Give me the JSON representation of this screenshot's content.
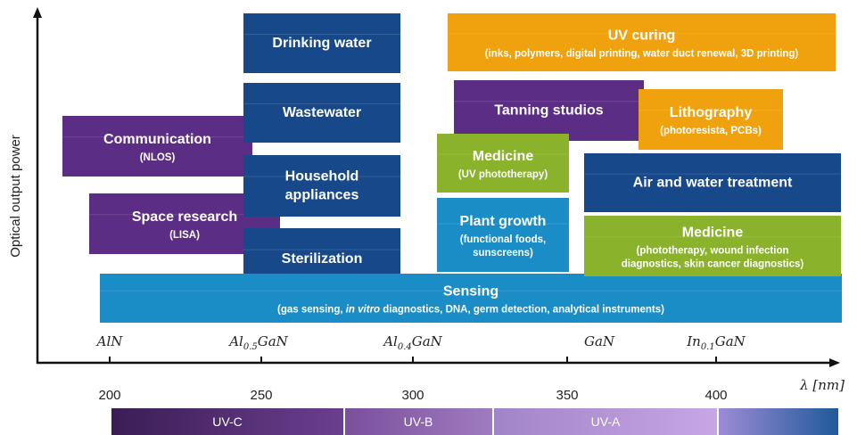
{
  "y_axis_label": "Optical output power",
  "x_axis_label": "λ [nm]",
  "x_ticks": [
    "200",
    "250",
    "300",
    "350",
    "400"
  ],
  "materials": [
    [
      "AlN"
    ],
    [
      "Al",
      "0.5",
      "GaN"
    ],
    [
      "Al",
      "0.4",
      "GaN"
    ],
    [
      "GaN"
    ],
    [
      "In",
      "0.1",
      "GaN"
    ]
  ],
  "bands": [
    "UV-C",
    "UV-B",
    "UV-A"
  ],
  "boxes": [
    {
      "title": [
        "Communication"
      ],
      "subtitle": [
        "(NLOS)"
      ]
    },
    {
      "title": [
        "Space research"
      ],
      "subtitle": [
        "(LISA)"
      ]
    },
    {
      "title": [
        "Drinking water"
      ],
      "subtitle": []
    },
    {
      "title": [
        "Wastewater"
      ],
      "subtitle": []
    },
    {
      "title": [
        "Household",
        "appliances"
      ],
      "subtitle": []
    },
    {
      "title": [
        "Sterilization"
      ],
      "subtitle": []
    },
    {
      "title": [
        "Sensing"
      ],
      "subtitle_parts": [
        "(gas sensing, ",
        "in vitro",
        " diagnostics, DNA, germ detection, analytical instruments)"
      ]
    },
    {
      "title": [
        "UV curing"
      ],
      "subtitle": [
        "(inks, polymers, digital printing, water duct renewal, 3D printing)"
      ]
    },
    {
      "title": [
        "Tanning studios"
      ],
      "subtitle": []
    },
    {
      "title": [
        "Lithography"
      ],
      "subtitle": [
        "(photoresista, PCBs)"
      ]
    },
    {
      "title": [
        "Medicine"
      ],
      "subtitle": [
        "(UV phototherapy)"
      ]
    },
    {
      "title": [
        "Plant growth"
      ],
      "subtitle": [
        "(functional foods,",
        "sunscreens)"
      ]
    },
    {
      "title": [
        "Air and water treatment"
      ],
      "subtitle": []
    },
    {
      "title": [
        "Medicine"
      ],
      "subtitle": [
        "(phototherapy, wound infection",
        "diagnostics, skin cancer diagnostics)"
      ]
    }
  ]
}
